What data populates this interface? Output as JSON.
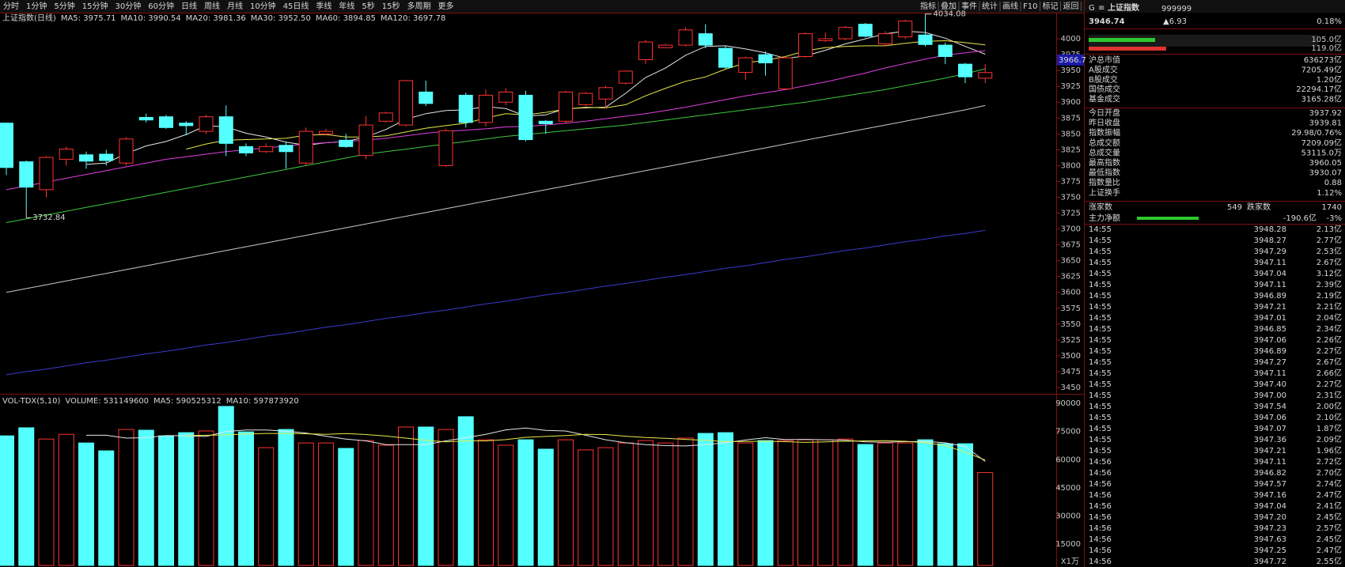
{
  "toolbar": {
    "tabs": [
      "分时",
      "1分钟",
      "5分钟",
      "15分钟",
      "30分钟",
      "60分钟",
      "日线",
      "周线",
      "月线",
      "10分钟",
      "45日线",
      "季线",
      "年线",
      "5秒",
      "15秒",
      "多周期",
      "更多"
    ],
    "tools": [
      "指标",
      "叠加",
      "事件",
      "统计",
      "画线",
      "F10",
      "标记",
      "返回"
    ]
  },
  "chart_data": [
    {
      "type": "candlestick",
      "title": "上证指数(日线)",
      "up_color": "#ff3232",
      "down_color": "#54ffff",
      "open": [
        3867,
        3806,
        3762,
        3810,
        3817,
        3818,
        3804,
        3876,
        3877,
        3867,
        3854,
        3877,
        3830,
        3822,
        3832,
        3804,
        3850,
        3840,
        3816,
        3870,
        3864,
        3916,
        3800,
        3911,
        3868,
        3900,
        3911,
        3870,
        3870,
        3896,
        3905,
        3930,
        3967,
        3986,
        3990,
        4008,
        3985,
        3947,
        3975,
        3921,
        3972,
        3997,
        4000,
        4023,
        3992,
        4003,
        4006,
        3990,
        3960,
        3937.92
      ],
      "high": [
        3868,
        3808,
        3815,
        3830,
        3822,
        3825,
        3845,
        3882,
        3880,
        3870,
        3880,
        3895,
        3835,
        3835,
        3838,
        3860,
        3858,
        3850,
        3878,
        3885,
        3935,
        3934,
        3858,
        3915,
        3920,
        3922,
        3918,
        3872,
        3918,
        3916,
        3926,
        3950,
        3998,
        3992,
        4018,
        4023,
        3988,
        3972,
        3980,
        3972,
        4010,
        4010,
        4020,
        4025,
        4012,
        4030,
        4034.08,
        3994,
        3962,
        3960.05
      ],
      "low": [
        3785,
        3732.84,
        3750,
        3800,
        3795,
        3800,
        3800,
        3868,
        3858,
        3848,
        3850,
        3815,
        3815,
        3820,
        3795,
        3800,
        3848,
        3828,
        3810,
        3868,
        3862,
        3894,
        3798,
        3860,
        3862,
        3895,
        3838,
        3850,
        3866,
        3894,
        3890,
        3928,
        3960,
        3985,
        3988,
        3985,
        3952,
        3935,
        3942,
        3920,
        3970,
        3995,
        3998,
        4002,
        3988,
        4000,
        3988,
        3960,
        3930,
        3930.07
      ],
      "close": [
        3797,
        3766,
        3813,
        3826,
        3807,
        3808,
        3842,
        3872,
        3860,
        3863,
        3877,
        3835,
        3820,
        3830,
        3822,
        3854,
        3854,
        3830,
        3864,
        3883,
        3934,
        3898,
        3855,
        3868,
        3911,
        3916,
        3841,
        3866,
        3916,
        3914,
        3923,
        3949,
        3995,
        3990,
        4014,
        3990,
        3955,
        3970,
        3962,
        3970,
        4008,
        4000,
        4018,
        4004,
        4008,
        4028,
        3991,
        3972,
        3940,
        3946.74
      ],
      "series": [
        {
          "name": "MA5: 3975.71",
          "color": "#e6e6e6",
          "values": [
            null,
            null,
            null,
            null,
            3802,
            3804,
            3819,
            3831,
            3838,
            3849,
            3863,
            3861,
            3851,
            3845,
            3837,
            3832,
            3836,
            3838,
            3845,
            3857,
            3873,
            3882,
            3887,
            3888,
            3893,
            3890,
            3878,
            3880,
            3890,
            3891,
            3892,
            3914,
            3939,
            3954,
            3974,
            3988,
            3989,
            3984,
            3978,
            3969,
            3973,
            3982,
            3992,
            4000,
            4008,
            4012,
            4010,
            4001,
            3988,
            3975.71
          ]
        },
        {
          "name": "MA10: 3990.54",
          "color": "#e8e84a",
          "values": [
            null,
            null,
            null,
            null,
            null,
            null,
            null,
            null,
            null,
            3826,
            3834,
            3840,
            3841,
            3842,
            3843,
            3848,
            3849,
            3845,
            3845,
            3847,
            3853,
            3859,
            3863,
            3867,
            3875,
            3882,
            3880,
            3884,
            3889,
            3892,
            3891,
            3896,
            3910,
            3922,
            3933,
            3940,
            3952,
            3962,
            3966,
            3972,
            3981,
            3986,
            3988,
            3989,
            3989,
            3993,
            3996,
            3997,
            3994,
            3990.54
          ]
        },
        {
          "name": "MA20: 3981.36",
          "color": "#e040e0",
          "values": [
            3762,
            3768,
            3774,
            3780,
            3786,
            3792,
            3798,
            3804,
            3810,
            3814,
            3818,
            3822,
            3825,
            3828,
            3831,
            3834,
            3836,
            3838,
            3840,
            3843,
            3847,
            3851,
            3854,
            3856,
            3858,
            3861,
            3862,
            3864,
            3867,
            3870,
            3874,
            3878,
            3882,
            3887,
            3892,
            3898,
            3904,
            3910,
            3915,
            3920,
            3926,
            3932,
            3939,
            3946,
            3954,
            3961,
            3968,
            3974,
            3978,
            3981.36
          ]
        },
        {
          "name": "MA30: 3952.50",
          "color": "#3cc83c",
          "values": [
            3710,
            3716,
            3722,
            3728,
            3734,
            3740,
            3746,
            3752,
            3758,
            3764,
            3770,
            3776,
            3782,
            3788,
            3794,
            3800,
            3806,
            3812,
            3818,
            3822,
            3826,
            3830,
            3834,
            3838,
            3842,
            3846,
            3849,
            3852,
            3855,
            3858,
            3861,
            3864,
            3868,
            3872,
            3876,
            3880,
            3884,
            3888,
            3892,
            3896,
            3900,
            3905,
            3910,
            3915,
            3920,
            3926,
            3932,
            3938,
            3945,
            3952.5
          ]
        },
        {
          "name": "MA60: 3894.85",
          "color": "#c8c8c8",
          "values": [
            3600,
            3606,
            3612,
            3618,
            3624,
            3630,
            3636,
            3642,
            3648,
            3654,
            3660,
            3666,
            3672,
            3678,
            3684,
            3690,
            3696,
            3702,
            3708,
            3714,
            3720,
            3726,
            3732,
            3738,
            3744,
            3750,
            3756,
            3762,
            3768,
            3774,
            3780,
            3786,
            3792,
            3798,
            3804,
            3810,
            3816,
            3822,
            3828,
            3834,
            3840,
            3846,
            3852,
            3858,
            3864,
            3870,
            3876,
            3882,
            3888,
            3894.85
          ]
        },
        {
          "name": "MA120: 3697.78",
          "color": "#3a3acc",
          "values": [
            3470,
            3475,
            3479,
            3484,
            3489,
            3493,
            3498,
            3503,
            3507,
            3512,
            3517,
            3521,
            3526,
            3531,
            3535,
            3540,
            3545,
            3549,
            3554,
            3559,
            3563,
            3568,
            3572,
            3577,
            3582,
            3586,
            3591,
            3596,
            3600,
            3605,
            3610,
            3614,
            3619,
            3624,
            3628,
            3633,
            3638,
            3642,
            3647,
            3652,
            3656,
            3661,
            3666,
            3670,
            3675,
            3680,
            3684,
            3689,
            3693,
            3697.78
          ]
        }
      ],
      "annotations": [
        4034.08,
        3732.84
      ],
      "crosshair_value": 3966.7,
      "ylim": [
        3440,
        4040
      ],
      "yticks": [
        3450,
        3475,
        3500,
        3525,
        3550,
        3575,
        3600,
        3625,
        3650,
        3675,
        3700,
        3725,
        3750,
        3775,
        3800,
        3825,
        3850,
        3875,
        3900,
        3925,
        3950,
        3975,
        4000
      ]
    },
    {
      "type": "bar",
      "title": "VOL-TDX(5,10)",
      "unit": "X1万",
      "series": [
        {
          "name": "VOLUME: 531149600",
          "color": "#54ffff",
          "values": [
            72700,
            77000,
            71000,
            73500,
            68900,
            64700,
            76100,
            75700,
            72700,
            74400,
            75300,
            88400,
            74800,
            66400,
            76100,
            68900,
            68900,
            66000,
            70200,
            67700,
            77400,
            77400,
            76100,
            82900,
            70600,
            67700,
            70600,
            65600,
            70600,
            65200,
            66400,
            68900,
            70200,
            68900,
            71500,
            74000,
            74400,
            68900,
            70200,
            70200,
            70600,
            70600,
            71000,
            68100,
            68900,
            68900,
            70600,
            68500,
            68500,
            53115
          ]
        },
        {
          "name": "MA5: 590525312",
          "color": "#e6e6e6",
          "values": [
            null,
            null,
            null,
            null,
            73000,
            73000,
            71500,
            71700,
            72900,
            72700,
            72400,
            75000,
            75800,
            75800,
            75200,
            74200,
            72500,
            71000,
            70000,
            68000,
            68000,
            68000,
            70000,
            71700,
            73500,
            75900,
            76900,
            75600,
            75300,
            73000,
            70600,
            69000,
            68000,
            67500,
            67300,
            68000,
            69000,
            70500,
            71700,
            70700,
            70800,
            70600,
            70400,
            69500,
            69300,
            69600,
            69700,
            69000,
            67000,
            59052.53
          ]
        },
        {
          "name": "MA10: 597873920",
          "color": "#e8e84a",
          "values": [
            null,
            null,
            null,
            null,
            null,
            null,
            null,
            null,
            null,
            72800,
            73000,
            73200,
            73700,
            74000,
            74000,
            73800,
            73500,
            73900,
            73400,
            72600,
            71500,
            70300,
            69500,
            70000,
            70000,
            70700,
            71900,
            72400,
            72900,
            73500,
            73400,
            72500,
            71800,
            71400,
            70800,
            70300,
            69600,
            69700,
            69800,
            69600,
            69200,
            69500,
            69800,
            70000,
            70100,
            69800,
            69000,
            67500,
            64000,
            59787.39
          ]
        }
      ],
      "ylim": [
        3600,
        93000
      ],
      "yticks": [
        15000,
        30000,
        45000,
        60000,
        75000,
        90000
      ]
    }
  ],
  "sidebar": {
    "quote": {
      "flag": "G",
      "menu": "≡",
      "name": "上证指数",
      "code": "999999",
      "price": "3946.74",
      "change": "▲6.93",
      "pct": "0.18%"
    },
    "flow": [
      "105.0亿",
      "119.0亿"
    ],
    "stats": [
      [
        "沪总市值",
        "636273亿"
      ],
      [
        "A股成交",
        "7205.49亿"
      ],
      [
        "B股成交",
        "1.20亿"
      ],
      [
        "国债成交",
        "22294.17亿"
      ],
      [
        "基金成交",
        "3165.28亿"
      ],
      [
        "今日开盘",
        "3937.92"
      ],
      [
        "昨日收盘",
        "3939.81"
      ],
      [
        "指数振幅",
        "29.98/0.76%"
      ],
      [
        "总成交额",
        "7209.09亿"
      ],
      [
        "总成交量",
        "53115.0万"
      ],
      [
        "最高指数",
        "3960.05"
      ],
      [
        "最低指数",
        "3930.07"
      ],
      [
        "指数量比",
        "0.88"
      ],
      [
        "上证换手",
        "1.12%"
      ]
    ],
    "breadth": [
      "涨家数",
      "549",
      "跌家数",
      "1740"
    ],
    "main_net": [
      "主力净额",
      "-190.6亿",
      "-3%"
    ],
    "ticks": [
      [
        "14:55",
        "3948.28",
        "2.13亿"
      ],
      [
        "14:55",
        "3948.27",
        "2.77亿"
      ],
      [
        "14:55",
        "3947.29",
        "2.53亿"
      ],
      [
        "14:55",
        "3947.11",
        "2.67亿"
      ],
      [
        "14:55",
        "3947.04",
        "3.12亿"
      ],
      [
        "14:55",
        "3947.11",
        "2.39亿"
      ],
      [
        "14:55",
        "3946.89",
        "2.19亿"
      ],
      [
        "14:55",
        "3947.21",
        "2.21亿"
      ],
      [
        "14:55",
        "3947.01",
        "2.04亿"
      ],
      [
        "14:55",
        "3946.85",
        "2.34亿"
      ],
      [
        "14:55",
        "3947.06",
        "2.26亿"
      ],
      [
        "14:55",
        "3946.89",
        "2.27亿"
      ],
      [
        "14:55",
        "3947.27",
        "2.67亿"
      ],
      [
        "14:55",
        "3947.11",
        "2.66亿"
      ],
      [
        "14:55",
        "3947.40",
        "2.27亿"
      ],
      [
        "14:55",
        "3947.00",
        "2.31亿"
      ],
      [
        "14:55",
        "3947.54",
        "2.00亿"
      ],
      [
        "14:55",
        "3947.06",
        "2.10亿"
      ],
      [
        "14:55",
        "3947.07",
        "1.87亿"
      ],
      [
        "14:55",
        "3947.36",
        "2.09亿"
      ],
      [
        "14:55",
        "3947.21",
        "1.96亿"
      ],
      [
        "14:56",
        "3947.11",
        "2.72亿"
      ],
      [
        "14:56",
        "3946.82",
        "2.70亿"
      ],
      [
        "14:56",
        "3947.57",
        "2.74亿"
      ],
      [
        "14:56",
        "3947.16",
        "2.47亿"
      ],
      [
        "14:56",
        "3947.04",
        "2.41亿"
      ],
      [
        "14:56",
        "3947.20",
        "2.45亿"
      ],
      [
        "14:56",
        "3947.23",
        "2.57亿"
      ],
      [
        "14:56",
        "3947.63",
        "2.45亿"
      ],
      [
        "14:56",
        "3947.25",
        "2.47亿"
      ],
      [
        "14:56",
        "3947.72",
        "2.55亿"
      ]
    ]
  }
}
